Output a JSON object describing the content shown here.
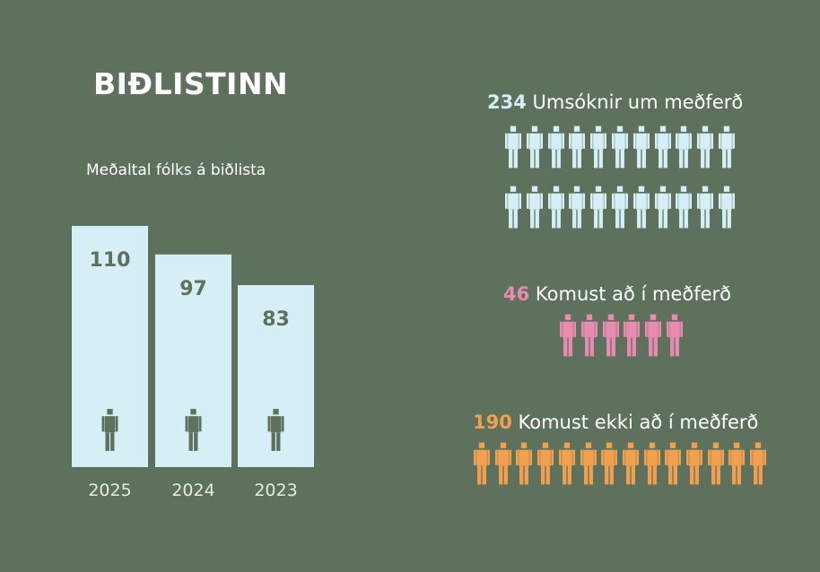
{
  "title": "BIÐLISTINN",
  "colors": {
    "background": "#5e715c",
    "bar": "#d6eef5",
    "bar_figure": "#5e715c",
    "applications": "#d6eef5",
    "admitted": "#e98bb0",
    "not_admitted": "#f0a04e"
  },
  "icon_name": "person-icon",
  "chart_data": [
    {
      "type": "bar",
      "title": "Meðaltal fólks á biðlista",
      "categories": [
        "2025",
        "2024",
        "2023"
      ],
      "values": [
        110,
        97,
        83
      ],
      "xlabel": "",
      "ylabel": "",
      "ylim": [
        0,
        120
      ],
      "grid": false
    },
    {
      "type": "pictogram",
      "series": [
        {
          "name": "Umsóknir um meðferð",
          "value": 234,
          "value_label": "234",
          "icons_shown": 22,
          "color": "#d6eef5"
        },
        {
          "name": "Komust að í meðferð",
          "value": 46,
          "value_label": "46",
          "icons_shown": 6,
          "color": "#e98bb0"
        },
        {
          "name": "Komust ekki að í meðferð",
          "value": 190,
          "value_label": "190",
          "icons_shown": 14,
          "color": "#f0a04e"
        }
      ]
    }
  ]
}
